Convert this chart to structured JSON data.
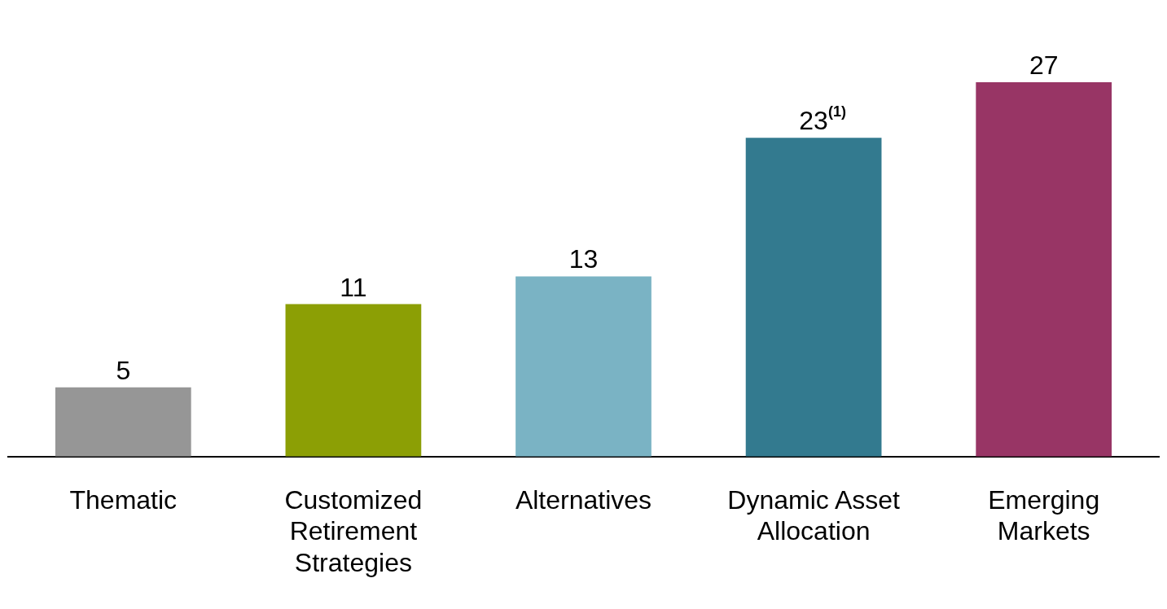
{
  "chart_data": {
    "type": "bar",
    "categories": [
      "Thematic",
      "Customized Retirement Strategies",
      "Alternatives",
      "Dynamic Asset Allocation",
      "Emerging Markets"
    ],
    "values": [
      5,
      11,
      13,
      23,
      27
    ],
    "colors": [
      "#969696",
      "#8c9f05",
      "#7ab3c4",
      "#337a8f",
      "#983565"
    ],
    "value_labels": [
      "5",
      "11",
      "13",
      "23$^{(1)}$",
      "27"
    ],
    "grid": false,
    "legend": false
  }
}
